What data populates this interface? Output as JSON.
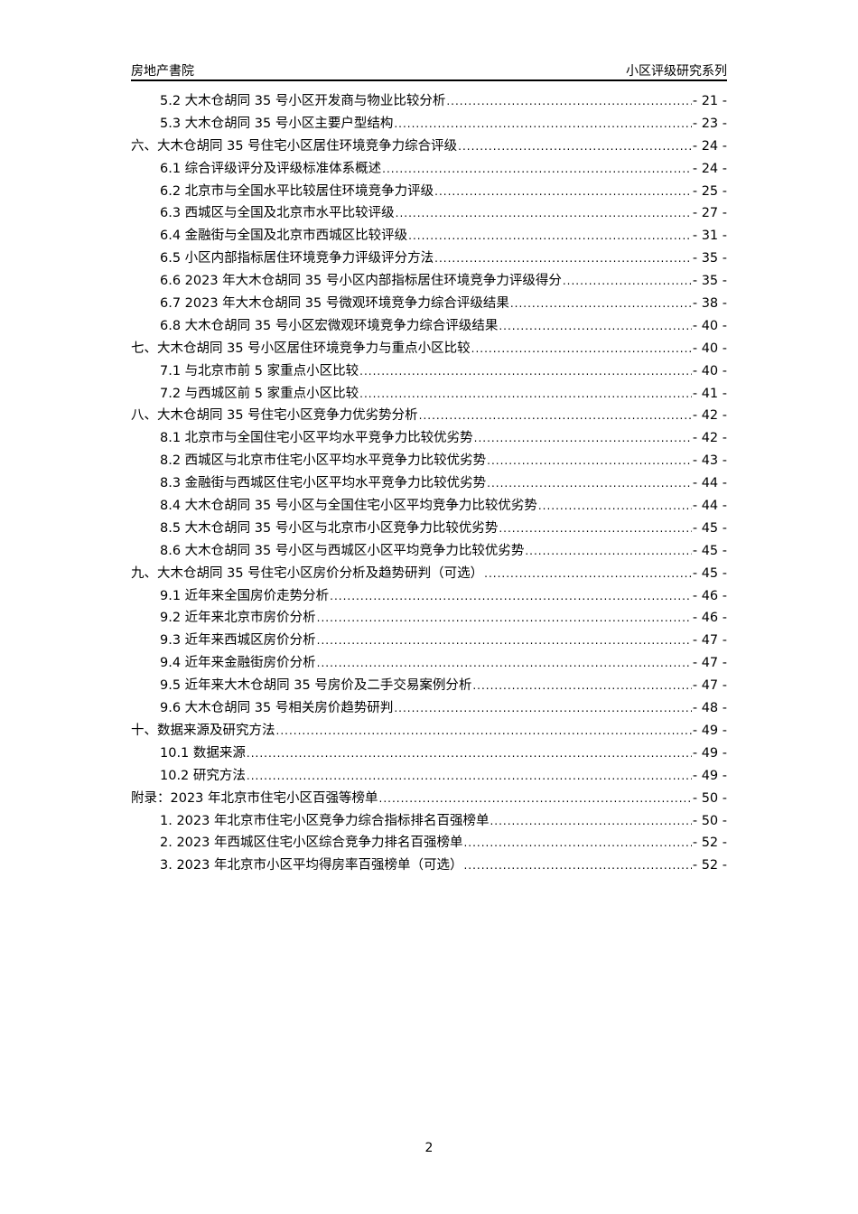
{
  "header": {
    "left": "房地产書院",
    "right": "小区评级研究系列"
  },
  "toc": [
    {
      "level": 2,
      "title": "5.2  大木仓胡同 35 号小区开发商与物业比较分析",
      "page": "- 21 -"
    },
    {
      "level": 2,
      "title": "5.3  大木仓胡同 35 号小区主要户型结构",
      "page": "- 23 -"
    },
    {
      "level": 1,
      "title": "六、大木仓胡同 35 号住宅小区居住环境竞争力综合评级",
      "page": "- 24 -"
    },
    {
      "level": 2,
      "title": "6.1  综合评级评分及评级标准体系概述",
      "page": "- 24 -"
    },
    {
      "level": 2,
      "title": "6.2  北京市与全国水平比较居住环境竞争力评级",
      "page": "- 25 -"
    },
    {
      "level": 2,
      "title": "6.3  西城区与全国及北京市水平比较评级",
      "page": "- 27 -"
    },
    {
      "level": 2,
      "title": "6.4  金融街与全国及北京市西城区比较评级",
      "page": "- 31 -"
    },
    {
      "level": 2,
      "title": "6.5  小区内部指标居住环境竞争力评级评分方法",
      "page": "- 35 -"
    },
    {
      "level": 2,
      "title": "6.6 2023 年大木仓胡同 35 号小区内部指标居住环境竞争力评级得分",
      "page": "- 35 -"
    },
    {
      "level": 2,
      "title": "6.7 2023 年大木仓胡同 35 号微观环境竞争力综合评级结果",
      "page": "- 38 -"
    },
    {
      "level": 2,
      "title": "6.8  大木仓胡同 35 号小区宏微观环境竞争力综合评级结果",
      "page": "- 40 -"
    },
    {
      "level": 1,
      "title": "七、大木仓胡同 35 号小区居住环境竞争力与重点小区比较",
      "page": "- 40 -"
    },
    {
      "level": 2,
      "title": "7.1  与北京市前 5 家重点小区比较",
      "page": "- 40 -"
    },
    {
      "level": 2,
      "title": "7.2  与西城区前 5 家重点小区比较",
      "page": "- 41 -"
    },
    {
      "level": 1,
      "title": "八、大木仓胡同 35 号住宅小区竞争力优劣势分析",
      "page": "- 42 -"
    },
    {
      "level": 2,
      "title": "8.1  北京市与全国住宅小区平均水平竞争力比较优劣势",
      "page": "- 42 -"
    },
    {
      "level": 2,
      "title": "8.2  西城区与北京市住宅小区平均水平竞争力比较优劣势",
      "page": "- 43 -"
    },
    {
      "level": 2,
      "title": "8.3  金融街与西城区住宅小区平均水平竞争力比较优劣势",
      "page": "- 44 -"
    },
    {
      "level": 2,
      "title": "8.4  大木仓胡同 35 号小区与全国住宅小区平均竞争力比较优劣势",
      "page": "- 44 -"
    },
    {
      "level": 2,
      "title": "8.5  大木仓胡同 35 号小区与北京市小区竞争力比较优劣势",
      "page": "- 45 -"
    },
    {
      "level": 2,
      "title": "8.6  大木仓胡同 35 号小区与西城区小区平均竞争力比较优劣势",
      "page": "- 45 -"
    },
    {
      "level": 1,
      "title": "九、大木仓胡同 35 号住宅小区房价分析及趋势研判（可选）",
      "page": "- 45 -"
    },
    {
      "level": 2,
      "title": "9.1  近年来全国房价走势分析",
      "page": "- 46 -"
    },
    {
      "level": 2,
      "title": "9.2  近年来北京市房价分析",
      "page": "- 46 -"
    },
    {
      "level": 2,
      "title": "9.3  近年来西城区房价分析",
      "page": "- 47 -"
    },
    {
      "level": 2,
      "title": "9.4  近年来金融街房价分析",
      "page": "- 47 -"
    },
    {
      "level": 2,
      "title": "9.5  近年来大木仓胡同 35 号房价及二手交易案例分析",
      "page": "- 47 -"
    },
    {
      "level": 2,
      "title": "9.6  大木仓胡同 35 号相关房价趋势研判",
      "page": "- 48 -"
    },
    {
      "level": 1,
      "title": "十、数据来源及研究方法",
      "page": "- 49 -"
    },
    {
      "level": 2,
      "title": "10.1  数据来源",
      "page": "- 49 -"
    },
    {
      "level": 2,
      "title": "10.2  研究方法",
      "page": "- 49 -"
    },
    {
      "level": 1,
      "title": "附录：2023 年北京市住宅小区百强等榜单",
      "page": "- 50 -"
    },
    {
      "level": 2,
      "title": "1.  2023 年北京市住宅小区竞争力综合指标排名百强榜单",
      "page": "- 50 -"
    },
    {
      "level": 2,
      "title": "2.  2023 年西城区住宅小区综合竞争力排名百强榜单",
      "page": "- 52 -"
    },
    {
      "level": 2,
      "title": "3.  2023 年北京市小区平均得房率百强榜单（可选）",
      "page": "- 52 -"
    }
  ],
  "footer": {
    "page_number": "2"
  }
}
